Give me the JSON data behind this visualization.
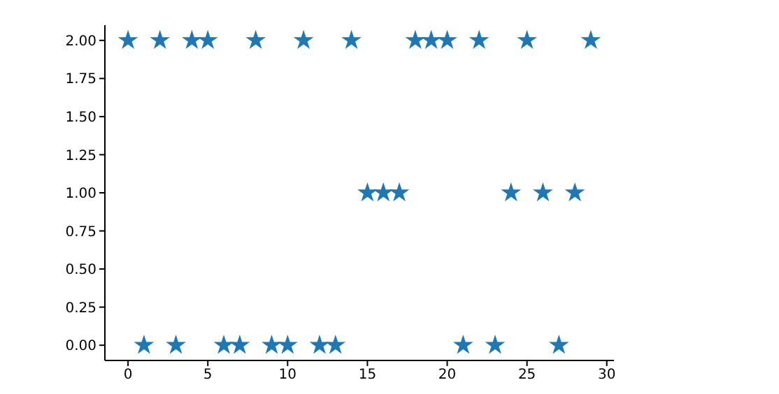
{
  "chart_data": {
    "type": "scatter",
    "x": [
      0,
      1,
      2,
      3,
      4,
      5,
      6,
      7,
      8,
      9,
      10,
      11,
      12,
      13,
      14,
      15,
      16,
      17,
      18,
      19,
      20,
      21,
      22,
      23,
      24,
      25,
      26,
      27,
      28,
      29
    ],
    "series": [
      {
        "color": "#1f77b4",
        "values": [
          2,
          0,
          2,
          0,
          2,
          2,
          0,
          0,
          2,
          0,
          0,
          2,
          0,
          0,
          2,
          1,
          1,
          1,
          2,
          2,
          2,
          0,
          2,
          0,
          1,
          2,
          1,
          0,
          1,
          2
        ]
      }
    ],
    "xlim": [
      -1.45,
      30.45
    ],
    "xticks": [
      0,
      5,
      10,
      15,
      20,
      25,
      30
    ],
    "ylim": [
      -0.1,
      2.1
    ],
    "yticks": [
      {
        "value": 0,
        "label": "0.00"
      },
      {
        "value": 0.25,
        "label": "0.25"
      },
      {
        "value": 0.5,
        "label": "0.50"
      },
      {
        "value": 0.75,
        "label": "0.75"
      },
      {
        "value": 1,
        "label": "1.00"
      },
      {
        "value": 1.25,
        "label": "1.25"
      },
      {
        "value": 1.5,
        "label": "1.50"
      },
      {
        "value": 1.75,
        "label": "1.75"
      },
      {
        "value": 2,
        "label": "2.00"
      }
    ],
    "marker": "star",
    "grid": false,
    "legend": false
  }
}
